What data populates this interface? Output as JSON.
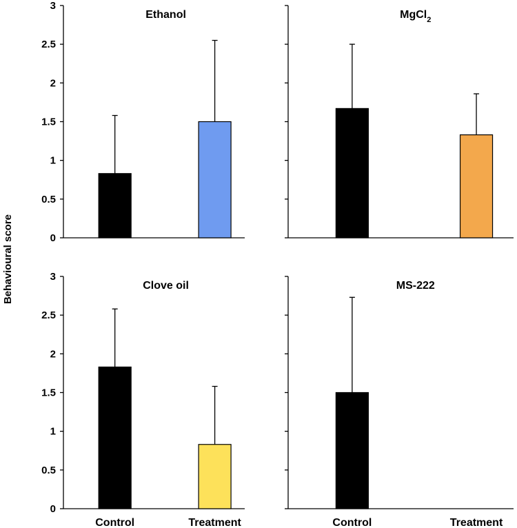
{
  "ylabel": "Behavioural score",
  "chart_data": [
    {
      "type": "bar",
      "title": "Ethanol",
      "categories": [
        "Control",
        "Treatment"
      ],
      "values": [
        0.83,
        1.5
      ],
      "error": [
        0.75,
        1.05
      ],
      "colors": [
        "#000000",
        "#6f9bf0"
      ],
      "ylim": [
        0,
        3
      ],
      "yticks": [
        "0",
        "0.5",
        "1",
        "1.5",
        "2",
        "2.5",
        "3"
      ],
      "show_category_labels": false
    },
    {
      "type": "bar",
      "title": "MgCl",
      "title_sub": "2",
      "categories": [
        "Control",
        "Treatment"
      ],
      "values": [
        1.67,
        1.33
      ],
      "error": [
        0.83,
        0.53
      ],
      "colors": [
        "#000000",
        "#f3a84c"
      ],
      "ylim": [
        0,
        3
      ],
      "yticks": [],
      "show_category_labels": false
    },
    {
      "type": "bar",
      "title": "Clove oil",
      "categories": [
        "Control",
        "Treatment"
      ],
      "values": [
        1.83,
        0.83
      ],
      "error": [
        0.75,
        0.75
      ],
      "colors": [
        "#000000",
        "#fde15a"
      ],
      "ylim": [
        0,
        3
      ],
      "yticks": [
        "0",
        "0.5",
        "1",
        "1.5",
        "2",
        "2.5",
        "3"
      ],
      "show_category_labels": true
    },
    {
      "type": "bar",
      "title": "MS-222",
      "categories": [
        "Control",
        "Treatment"
      ],
      "values": [
        1.5,
        0
      ],
      "error": [
        1.23,
        0
      ],
      "colors": [
        "#000000",
        "#000000"
      ],
      "ylim": [
        0,
        3
      ],
      "yticks": [],
      "show_category_labels": true
    }
  ]
}
